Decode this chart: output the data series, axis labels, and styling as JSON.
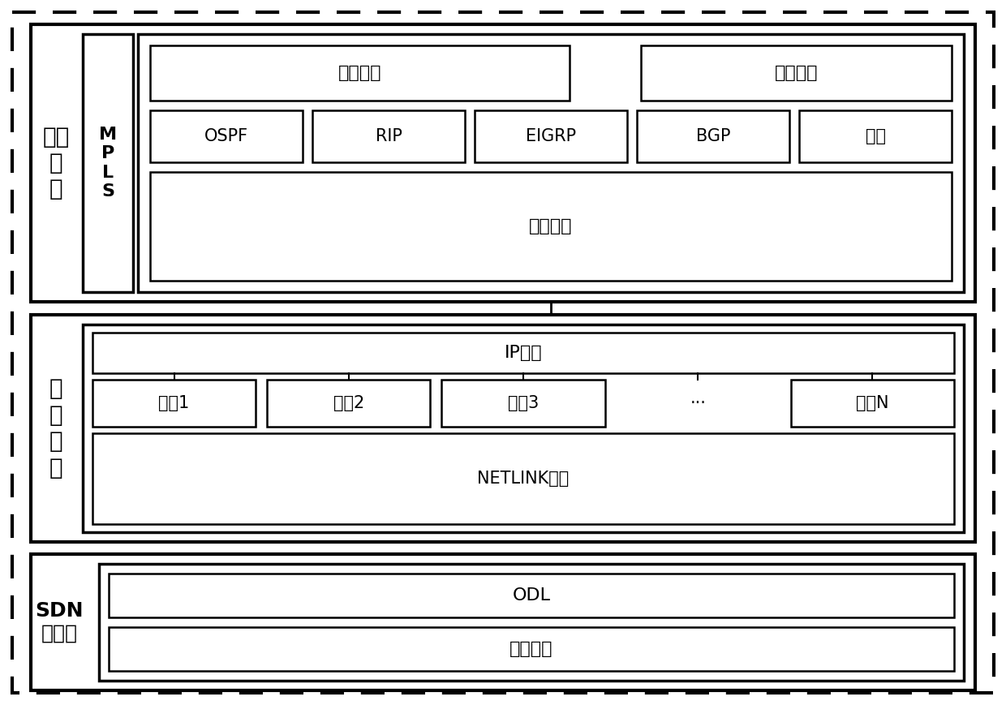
{
  "bg_color": "#ffffff",
  "text_color": "#000000",
  "sections": {
    "protocol_label": "协议\n模\n块",
    "kernel_label": "内\n核\n模\n块",
    "sdn_label": "SDN\n控制器",
    "mpls_label": "M\nP\nL\nS",
    "route_mgmt": "路由管理",
    "route_select": "路由选择",
    "ospf": "OSPF",
    "rip": "RIP",
    "eigrp": "EIGRP",
    "bgp": "BGP",
    "multicast": "组播",
    "route_engine": "路由引擎",
    "ip_core": "IP内核",
    "iface1": "接口1",
    "iface2": "接口2",
    "iface3": "接口3",
    "iface_dots": "···",
    "ifaceN": "接口N",
    "netlink": "NETLINK适配",
    "odl": "ODL",
    "southbound": "南向接口"
  }
}
